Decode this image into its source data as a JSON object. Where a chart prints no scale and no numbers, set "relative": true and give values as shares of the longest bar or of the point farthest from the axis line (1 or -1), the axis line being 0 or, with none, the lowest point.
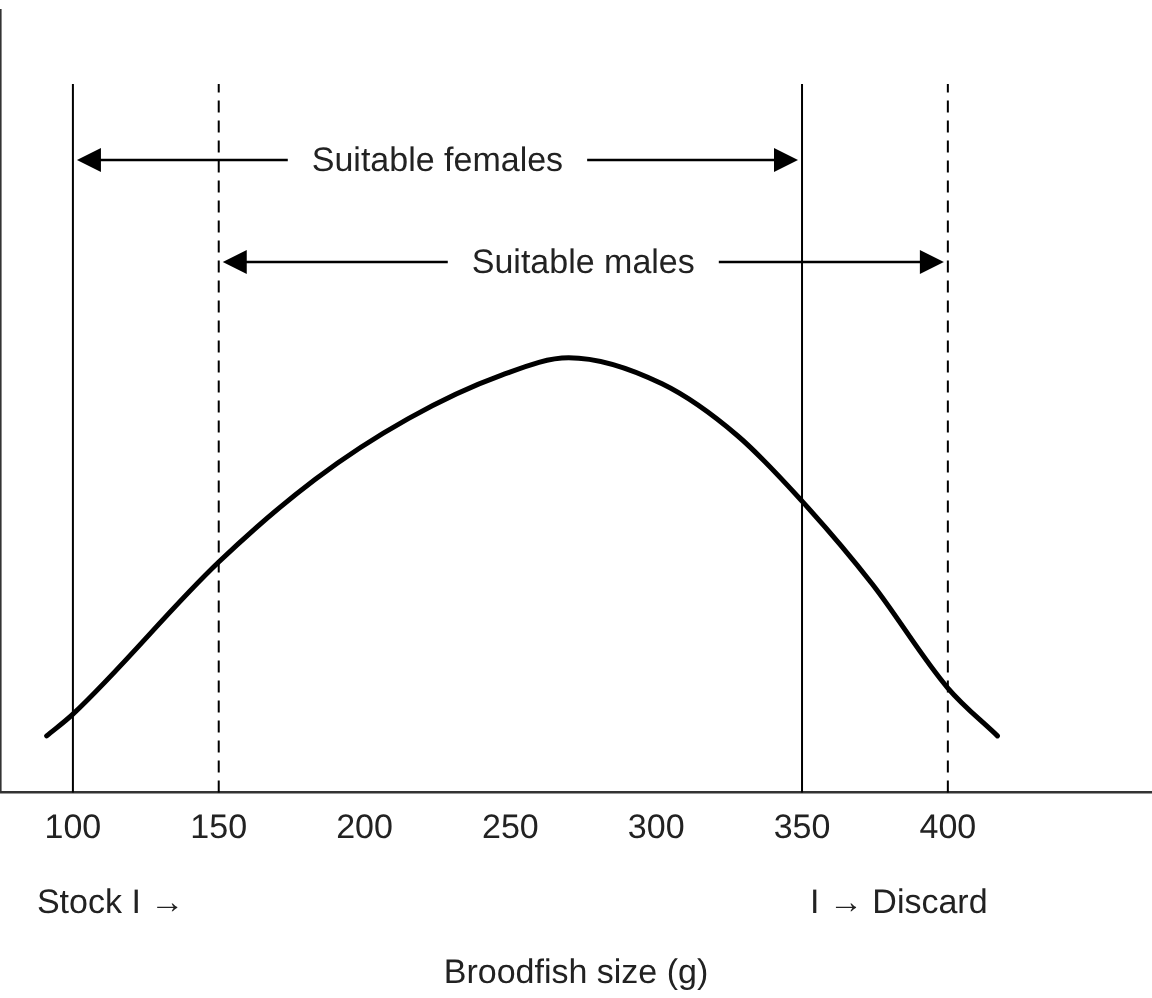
{
  "chart_data": {
    "type": "line",
    "xlabel": "Broodfish size (g)",
    "relative": true,
    "grid": false,
    "marker": "none",
    "line_style": "solid",
    "xlim": [
      75,
      470
    ],
    "xticks": [
      100,
      150,
      200,
      250,
      300,
      350,
      400
    ],
    "series": [
      {
        "color": "#000000",
        "x": [
          91,
          100,
          150,
          183,
          215,
          247,
          270,
          302,
          328,
          350,
          374,
          400,
          417
        ],
        "values": [
          0.13,
          0.18,
          0.53,
          0.72,
          0.86,
          0.96,
          1,
          0.94,
          0.82,
          0.67,
          0.48,
          0.24,
          0.13
        ]
      }
    ],
    "ref_lines": [
      {
        "axis": "x",
        "value": 100,
        "line_style": "solid",
        "color": "#000000"
      },
      {
        "axis": "x",
        "value": 150,
        "line_style": "dashed",
        "color": "#000000"
      },
      {
        "axis": "x",
        "value": 350,
        "line_style": "solid",
        "color": "#000000"
      },
      {
        "axis": "x",
        "value": 400,
        "line_style": "dashed",
        "color": "#000000"
      }
    ],
    "annotations": [
      "Suitable females",
      "Suitable males",
      "Stock I →",
      "I → Discard"
    ]
  }
}
